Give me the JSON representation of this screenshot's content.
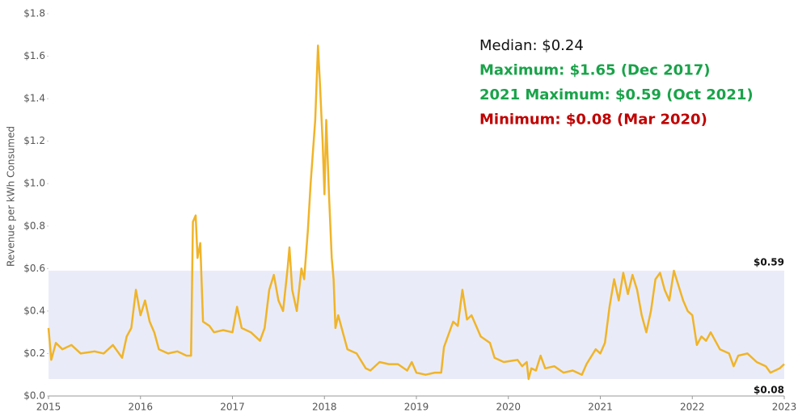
{
  "chart_data": {
    "type": "line",
    "y_label": "Revenue per kWh Consumed",
    "xlim": [
      2015,
      2023
    ],
    "xticks": [
      2015,
      2016,
      2017,
      2018,
      2019,
      2020,
      2021,
      2022,
      2023
    ],
    "ylim": [
      0,
      1.8
    ],
    "yticks": [
      {
        "value": 0,
        "label": "$0.0"
      },
      {
        "value": 0.2,
        "label": "$0.2"
      },
      {
        "value": 0.4,
        "label": "$0.4"
      },
      {
        "value": 0.6,
        "label": "$0.6"
      },
      {
        "value": 0.8,
        "label": "$0.8"
      },
      {
        "value": 1.0,
        "label": "$1.0"
      },
      {
        "value": 1.2,
        "label": "$1.2"
      },
      {
        "value": 1.4,
        "label": "$1.4"
      },
      {
        "value": 1.6,
        "label": "$1.6"
      },
      {
        "value": 1.8,
        "label": "$1.8"
      }
    ],
    "color": "#f0b429",
    "band": {
      "values": [
        0.08,
        0.59
      ],
      "value_labels": [
        "$0.08",
        "$0.59"
      ],
      "color": "#e9ecf8"
    },
    "annotations": [
      {
        "text": "Median: $0.24",
        "color": "#111111"
      },
      {
        "text": "Maximum: $1.65 (Dec 2017)",
        "color": "#1aa34a"
      },
      {
        "text": "2021 Maximum: $0.59 (Oct 2021)",
        "color": "#1aa34a"
      },
      {
        "text": "Minimum: $0.08 (Mar 2020)",
        "color": "#c00000"
      }
    ],
    "x": [
      2015.0,
      2015.03,
      2015.08,
      2015.15,
      2015.25,
      2015.35,
      2015.5,
      2015.6,
      2015.7,
      2015.8,
      2015.85,
      2015.9,
      2015.95,
      2016.0,
      2016.05,
      2016.1,
      2016.15,
      2016.2,
      2016.3,
      2016.4,
      2016.45,
      2016.5,
      2016.55,
      2016.57,
      2016.6,
      2016.62,
      2016.65,
      2016.68,
      2016.75,
      2016.8,
      2016.9,
      2017.0,
      2017.05,
      2017.1,
      2017.2,
      2017.3,
      2017.35,
      2017.4,
      2017.45,
      2017.5,
      2017.55,
      2017.6,
      2017.62,
      2017.65,
      2017.7,
      2017.75,
      2017.78,
      2017.82,
      2017.85,
      2017.9,
      2017.93,
      2017.95,
      2017.98,
      2018.0,
      2018.02,
      2018.05,
      2018.08,
      2018.1,
      2018.12,
      2018.15,
      2018.2,
      2018.25,
      2018.35,
      2018.45,
      2018.5,
      2018.6,
      2018.7,
      2018.8,
      2018.9,
      2018.95,
      2019.0,
      2019.1,
      2019.2,
      2019.27,
      2019.3,
      2019.4,
      2019.45,
      2019.5,
      2019.55,
      2019.6,
      2019.7,
      2019.8,
      2019.85,
      2019.95,
      2020.1,
      2020.15,
      2020.2,
      2020.22,
      2020.25,
      2020.3,
      2020.35,
      2020.4,
      2020.5,
      2020.6,
      2020.7,
      2020.8,
      2020.85,
      2020.95,
      2021.0,
      2021.05,
      2021.1,
      2021.15,
      2021.2,
      2021.25,
      2021.3,
      2021.35,
      2021.4,
      2021.45,
      2021.5,
      2021.55,
      2021.6,
      2021.65,
      2021.7,
      2021.75,
      2021.8,
      2021.85,
      2021.9,
      2021.95,
      2022.0,
      2022.05,
      2022.1,
      2022.15,
      2022.2,
      2022.3,
      2022.4,
      2022.45,
      2022.5,
      2022.6,
      2022.7,
      2022.8,
      2022.85,
      2022.9,
      2022.95,
      2023.0
    ],
    "values": [
      0.32,
      0.17,
      0.25,
      0.22,
      0.24,
      0.2,
      0.21,
      0.2,
      0.24,
      0.18,
      0.28,
      0.32,
      0.5,
      0.38,
      0.45,
      0.35,
      0.3,
      0.22,
      0.2,
      0.21,
      0.2,
      0.19,
      0.19,
      0.82,
      0.85,
      0.65,
      0.72,
      0.35,
      0.33,
      0.3,
      0.31,
      0.3,
      0.42,
      0.32,
      0.3,
      0.26,
      0.32,
      0.5,
      0.57,
      0.45,
      0.4,
      0.6,
      0.7,
      0.5,
      0.4,
      0.6,
      0.55,
      0.78,
      1.0,
      1.3,
      1.65,
      1.48,
      1.2,
      0.95,
      1.3,
      0.95,
      0.65,
      0.55,
      0.32,
      0.38,
      0.3,
      0.22,
      0.2,
      0.13,
      0.12,
      0.16,
      0.15,
      0.15,
      0.12,
      0.16,
      0.11,
      0.1,
      0.11,
      0.11,
      0.23,
      0.35,
      0.33,
      0.5,
      0.36,
      0.38,
      0.28,
      0.25,
      0.18,
      0.16,
      0.17,
      0.14,
      0.16,
      0.08,
      0.13,
      0.12,
      0.19,
      0.13,
      0.14,
      0.11,
      0.12,
      0.1,
      0.15,
      0.22,
      0.2,
      0.25,
      0.42,
      0.55,
      0.45,
      0.58,
      0.48,
      0.57,
      0.5,
      0.38,
      0.3,
      0.4,
      0.55,
      0.58,
      0.5,
      0.45,
      0.59,
      0.52,
      0.45,
      0.4,
      0.38,
      0.24,
      0.28,
      0.26,
      0.3,
      0.22,
      0.2,
      0.14,
      0.19,
      0.2,
      0.16,
      0.14,
      0.11,
      0.12,
      0.13,
      0.15
    ]
  }
}
